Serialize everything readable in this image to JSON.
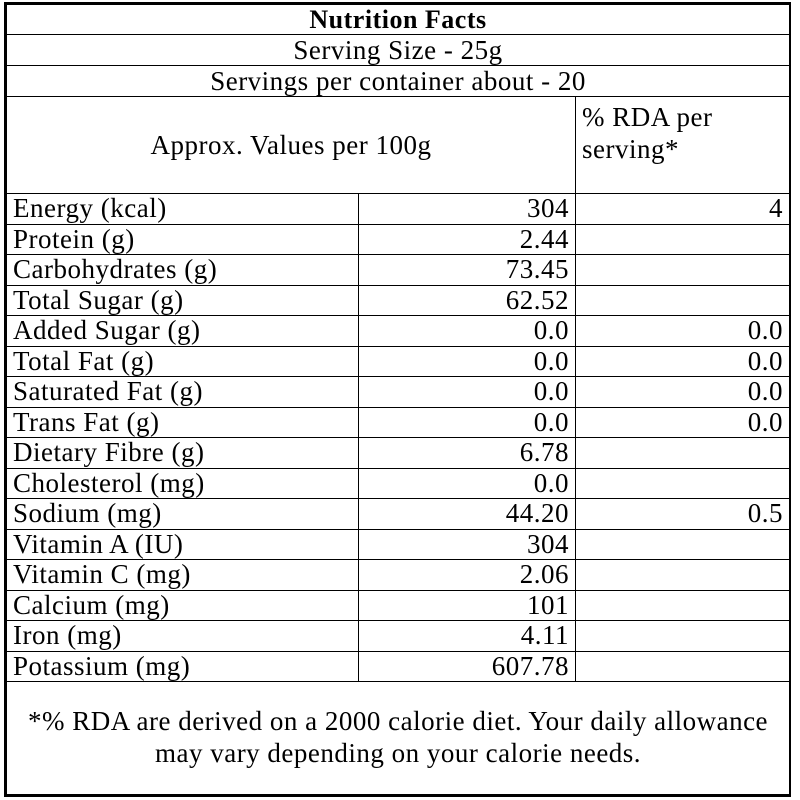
{
  "title": "Nutrition Facts",
  "serving_size": "Serving Size - 25g",
  "servings_per_container": "Servings per container about - 20",
  "header": {
    "values_label": "Approx. Values per 100g",
    "rda_label": "% RDA per serving*"
  },
  "nutrients": [
    {
      "name": "Energy (kcal)",
      "value": "304",
      "rda": "4"
    },
    {
      "name": "Protein (g)",
      "value": "2.44",
      "rda": ""
    },
    {
      "name": "Carbohydrates (g)",
      "value": "73.45",
      "rda": ""
    },
    {
      "name": "Total Sugar (g)",
      "value": "62.52",
      "rda": ""
    },
    {
      "name": "Added Sugar (g)",
      "value": "0.0",
      "rda": "0.0"
    },
    {
      "name": "Total Fat (g)",
      "value": "0.0",
      "rda": "0.0"
    },
    {
      "name": "Saturated Fat (g)",
      "value": "0.0",
      "rda": "0.0"
    },
    {
      "name": "Trans Fat (g)",
      "value": "0.0",
      "rda": "0.0"
    },
    {
      "name": "Dietary Fibre (g)",
      "value": "6.78",
      "rda": ""
    },
    {
      "name": "Cholesterol (mg)",
      "value": "0.0",
      "rda": ""
    },
    {
      "name": "Sodium (mg)",
      "value": "44.20",
      "rda": "0.5"
    },
    {
      "name": "Vitamin A (IU)",
      "value": "304",
      "rda": ""
    },
    {
      "name": "Vitamin C (mg)",
      "value": "2.06",
      "rda": ""
    },
    {
      "name": "Calcium (mg)",
      "value": "101",
      "rda": ""
    },
    {
      "name": "Iron (mg)",
      "value": "4.11",
      "rda": ""
    },
    {
      "name": "Potassium (mg)",
      "value": "607.78",
      "rda": ""
    }
  ],
  "footnote": "*% RDA are derived on a 2000 calorie diet. Your daily allowance may vary depending on your calorie needs."
}
